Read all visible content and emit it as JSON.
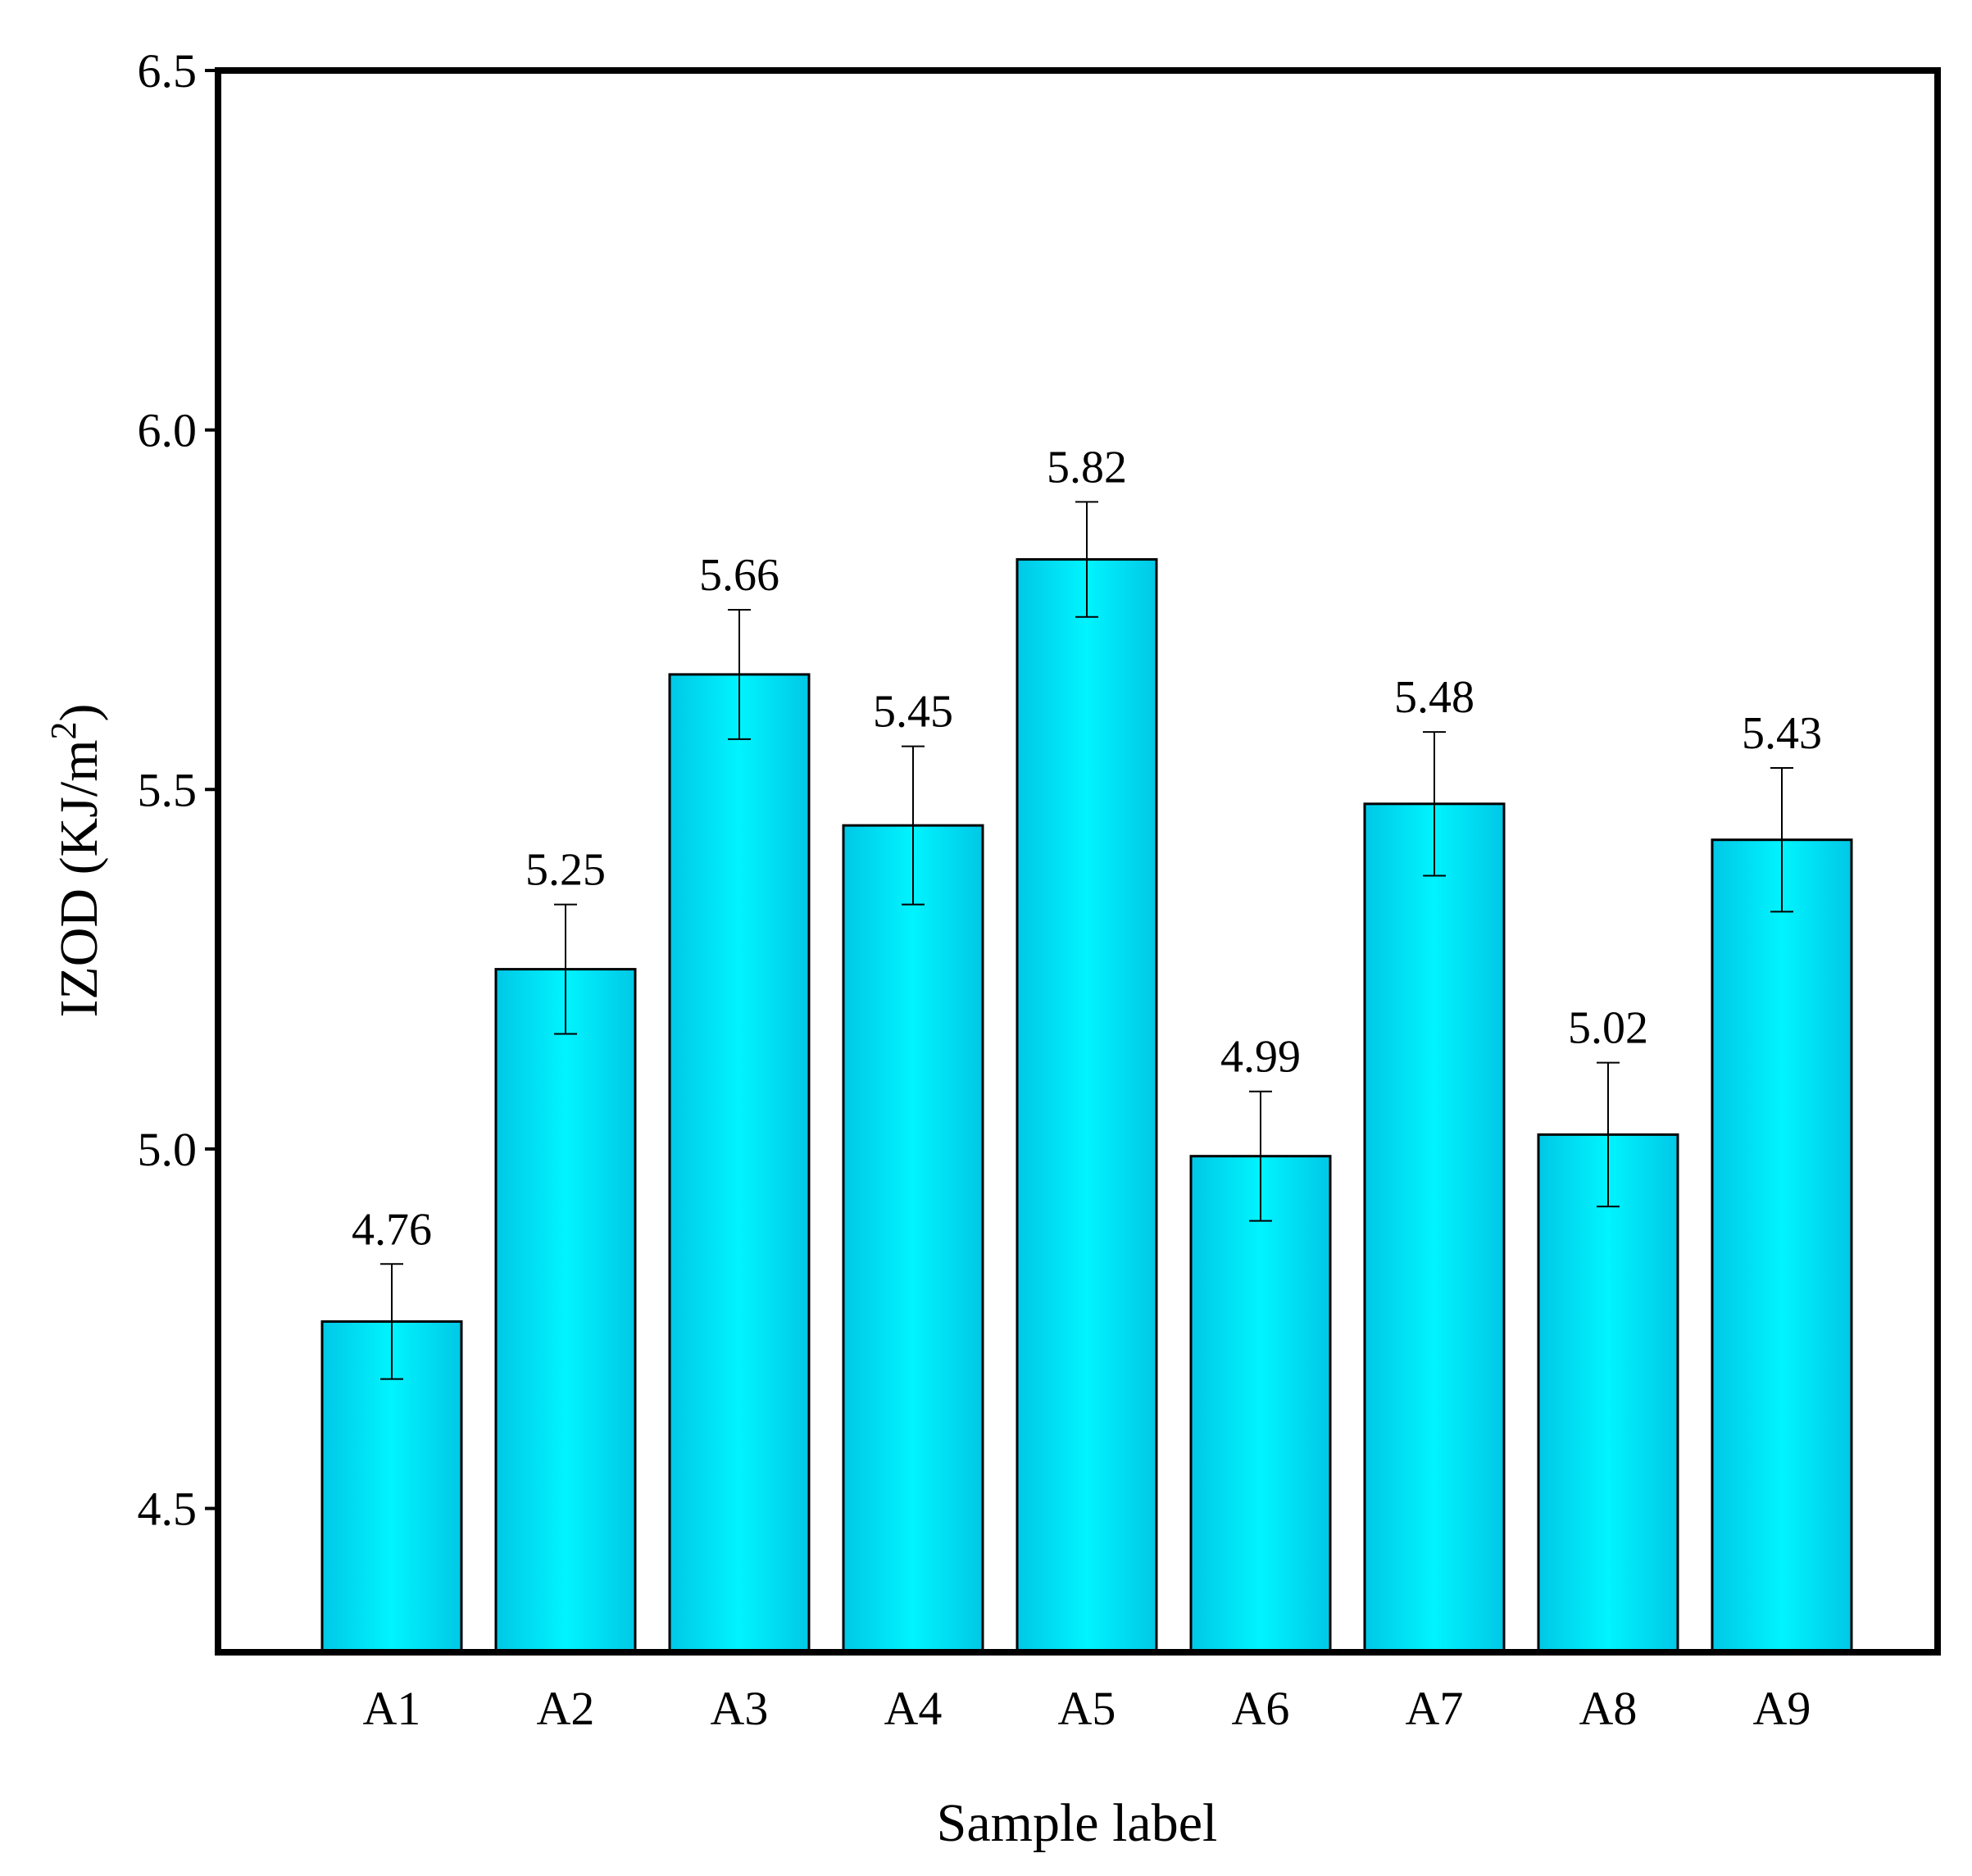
{
  "chart_data": {
    "type": "bar",
    "title": "",
    "xlabel": "Sample label",
    "ylabel": "IZOD (KJ/m",
    "ylabel_superscript": "2",
    "ylabel_suffix": ")",
    "ylim": [
      4.3,
      6.5
    ],
    "yticks": [
      4.5,
      5.0,
      5.5,
      6.0,
      6.5
    ],
    "ytick_labels": [
      "4.5",
      "5.0",
      "5.5",
      "6.0",
      "6.5"
    ],
    "categories": [
      "A1",
      "A2",
      "A3",
      "A4",
      "A5",
      "A6",
      "A7",
      "A8",
      "A9"
    ],
    "values": [
      4.76,
      5.25,
      5.66,
      5.45,
      5.82,
      4.99,
      5.48,
      5.02,
      5.43
    ],
    "value_labels": [
      "4.76",
      "5.25",
      "5.66",
      "5.45",
      "5.82",
      "4.99",
      "5.48",
      "5.02",
      "5.43"
    ],
    "errors": [
      0.08,
      0.09,
      0.09,
      0.11,
      0.08,
      0.09,
      0.1,
      0.1,
      0.1
    ],
    "bar_color": "#00e5f5",
    "bar_edge_color": "#000000",
    "grid": false,
    "legend": null
  }
}
